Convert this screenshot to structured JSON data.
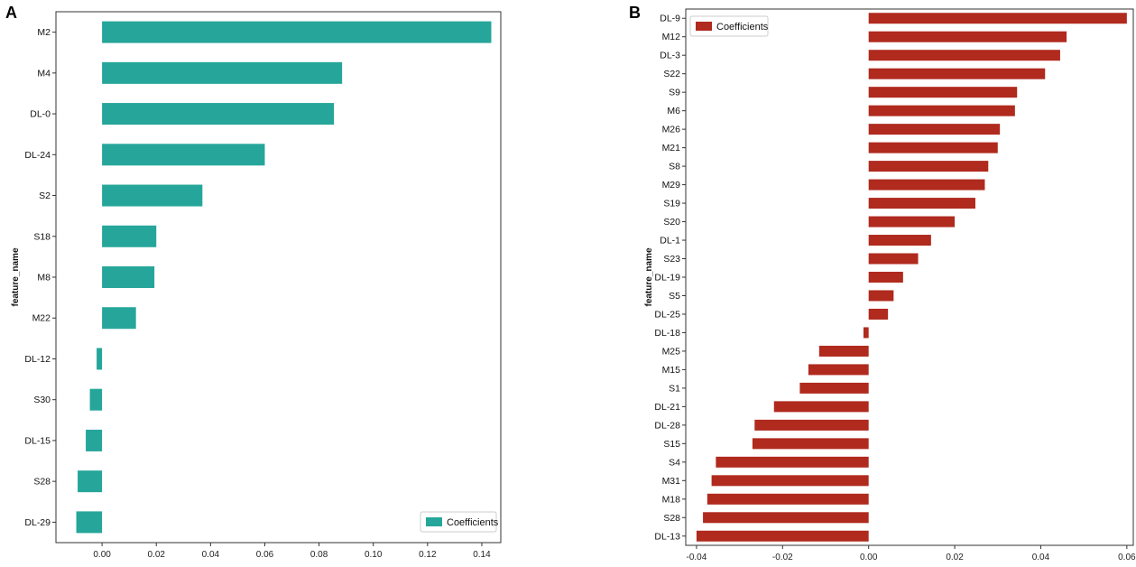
{
  "chart_data": [
    {
      "panel": "A",
      "type": "bar",
      "orientation": "horizontal",
      "title": "",
      "xlabel": "",
      "ylabel": "feature_name",
      "color": "#26a69a",
      "legend": {
        "label": "Coefficients",
        "placement": "lower-right"
      },
      "xlim": [
        -0.017,
        0.147
      ],
      "xticks": [
        0.0,
        0.02,
        0.04,
        0.06,
        0.08,
        0.1,
        0.12,
        0.14
      ],
      "xtick_labels": [
        "0.00",
        "0.02",
        "0.04",
        "0.06",
        "0.08",
        "0.10",
        "0.12",
        "0.14"
      ],
      "categories": [
        "M2",
        "M4",
        "DL-0",
        "DL-24",
        "S2",
        "S18",
        "M8",
        "M22",
        "DL-12",
        "S30",
        "DL-15",
        "S28",
        "DL-29"
      ],
      "values": [
        0.1435,
        0.0885,
        0.0855,
        0.06,
        0.037,
        0.02,
        0.0193,
        0.0125,
        -0.002,
        -0.0045,
        -0.006,
        -0.009,
        -0.0095
      ]
    },
    {
      "panel": "B",
      "type": "bar",
      "orientation": "horizontal",
      "title": "",
      "xlabel": "",
      "ylabel": "feature_name",
      "color": "#b02a1e",
      "legend": {
        "label": "Coefficients",
        "placement": "upper-left"
      },
      "xlim": [
        -0.0425,
        0.0615
      ],
      "xticks": [
        -0.04,
        -0.02,
        0.0,
        0.02,
        0.04,
        0.06
      ],
      "xtick_labels": [
        "-0.04",
        "-0.02",
        "0.00",
        "0.02",
        "0.04",
        "0.06"
      ],
      "categories": [
        "DL-9",
        "M12",
        "DL-3",
        "S22",
        "S9",
        "M6",
        "M26",
        "M21",
        "S8",
        "M29",
        "S19",
        "S20",
        "DL-1",
        "S23",
        "DL-19",
        "S5",
        "DL-25",
        "DL-18",
        "M25",
        "M15",
        "S1",
        "DL-21",
        "DL-28",
        "S15",
        "S4",
        "M31",
        "M18",
        "S28",
        "DL-13"
      ],
      "values": [
        0.06,
        0.046,
        0.0445,
        0.041,
        0.0345,
        0.034,
        0.0305,
        0.03,
        0.0278,
        0.027,
        0.0248,
        0.02,
        0.0145,
        0.0115,
        0.008,
        0.0058,
        0.0045,
        -0.0012,
        -0.0115,
        -0.014,
        -0.016,
        -0.022,
        -0.0265,
        -0.027,
        -0.0355,
        -0.0365,
        -0.0375,
        -0.0385,
        -0.04
      ]
    }
  ]
}
